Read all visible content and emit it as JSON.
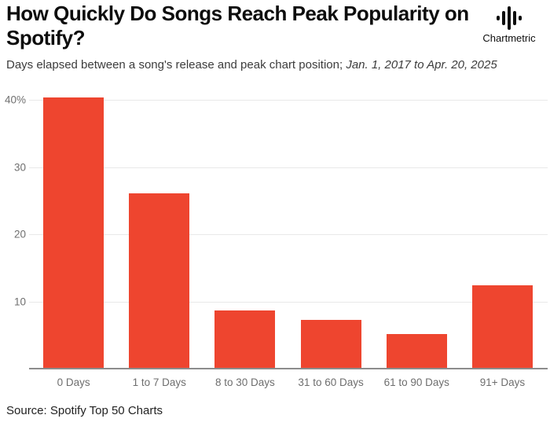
{
  "header": {
    "title": "How Quickly Do Songs Reach Peak Popularity on Spotify?",
    "subtitle_plain": "Days elapsed between a song's release and peak chart position; ",
    "subtitle_italic": "Jan. 1, 2017 to Apr. 20, 2025",
    "brand": "Chartmetric"
  },
  "chart_data": {
    "type": "bar",
    "title": "How Quickly Do Songs Reach Peak Popularity on Spotify?",
    "categories": [
      "0 Days",
      "1 to 7 Days",
      "8 to 30 Days",
      "31 to 60 Days",
      "61 to 90 Days",
      "91+ Days"
    ],
    "values": [
      40.4,
      26.1,
      8.6,
      7.3,
      5.1,
      12.4
    ],
    "unit": "%",
    "xlabel": "",
    "ylabel": "",
    "ylim": [
      0,
      42
    ],
    "yticks": [
      10,
      20,
      30,
      40
    ],
    "ytick_labels": [
      "10",
      "20",
      "30",
      "40%"
    ],
    "grid": true,
    "legend": "none",
    "bar_color": "#EE452F"
  },
  "footer": {
    "source": "Source: Spotify Top 50 Charts"
  },
  "colors": {
    "bar": "#EE452F",
    "gridline": "#e9e9e9",
    "axis_line": "#8c8c8c",
    "tick_text": "#707070",
    "title_text": "#0d0d0d",
    "subtitle_text": "#3c3c3c",
    "source_text": "#222222",
    "background": "#ffffff"
  }
}
